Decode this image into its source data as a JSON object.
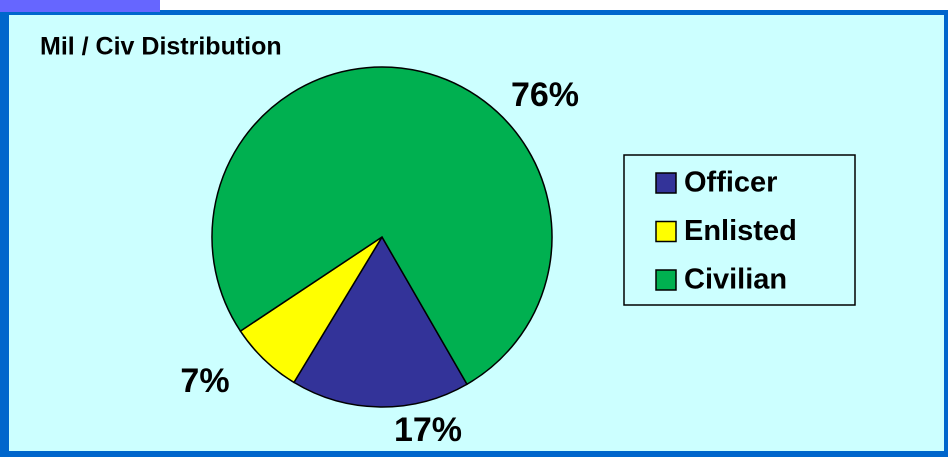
{
  "chart_data": {
    "type": "pie",
    "title": "Mil / Civ Distribution",
    "categories": [
      "Officer",
      "Enlisted",
      "Civilian"
    ],
    "values": [
      17,
      7,
      76
    ],
    "value_labels": [
      "17%",
      "7%",
      "76%"
    ],
    "colors": [
      "#333399",
      "#ffff00",
      "#00b050"
    ],
    "legend": "right"
  }
}
